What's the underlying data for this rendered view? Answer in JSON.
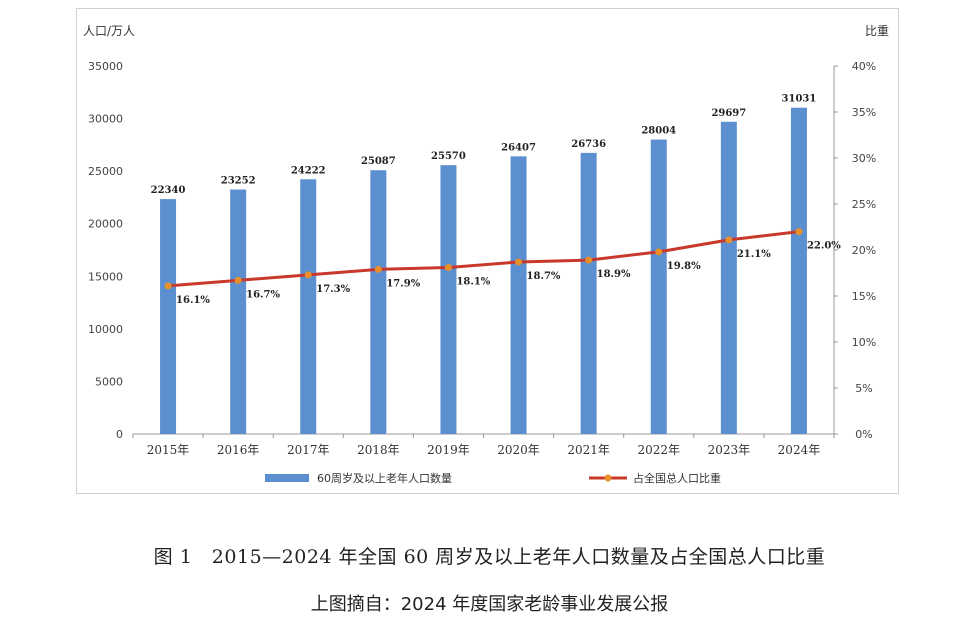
{
  "chart_data": {
    "type": "bar",
    "categories": [
      "2015年",
      "2016年",
      "2017年",
      "2018年",
      "2019年",
      "2020年",
      "2021年",
      "2022年",
      "2023年",
      "2024年"
    ],
    "series": [
      {
        "name": "60周岁及以上老年人口数量",
        "type": "bar",
        "axis": "left",
        "color": "#5b8fcf",
        "values": [
          22340,
          23252,
          24222,
          25087,
          25570,
          26407,
          26736,
          28004,
          29697,
          31031
        ],
        "labels": [
          "22340",
          "23252",
          "24222",
          "25087",
          "25570",
          "26407",
          "26736",
          "28004",
          "29697",
          "31031"
        ]
      },
      {
        "name": "占全国总人口比重",
        "type": "line",
        "axis": "right",
        "color": "#c8392b",
        "marker_color": "#e8912c",
        "values": [
          16.1,
          16.7,
          17.3,
          17.9,
          18.1,
          18.7,
          18.9,
          19.8,
          21.1,
          22.0
        ],
        "labels": [
          "16.1%",
          "16.7%",
          "17.3%",
          "17.9%",
          "18.1%",
          "18.7%",
          "18.9%",
          "19.8%",
          "21.1%",
          "22.0%"
        ]
      }
    ],
    "ylabel_left": "人口/万人",
    "ylabel_right": "比重",
    "ylim_left": [
      0,
      35000
    ],
    "ylim_right": [
      0,
      40
    ],
    "yticks_left": [
      "0",
      "5000",
      "10000",
      "15000",
      "20000",
      "25000",
      "30000",
      "35000"
    ],
    "yticks_right": [
      "0%",
      "5%",
      "10%",
      "15%",
      "20%",
      "25%",
      "30%",
      "35%",
      "40%"
    ],
    "grid": false,
    "legend_position": "bottom"
  },
  "caption": "图 1　2015—2024 年全国 60 周岁及以上老年人口数量及占全国总人口比重",
  "source_note": "上图摘自：2024 年度国家老龄事业发展公报"
}
